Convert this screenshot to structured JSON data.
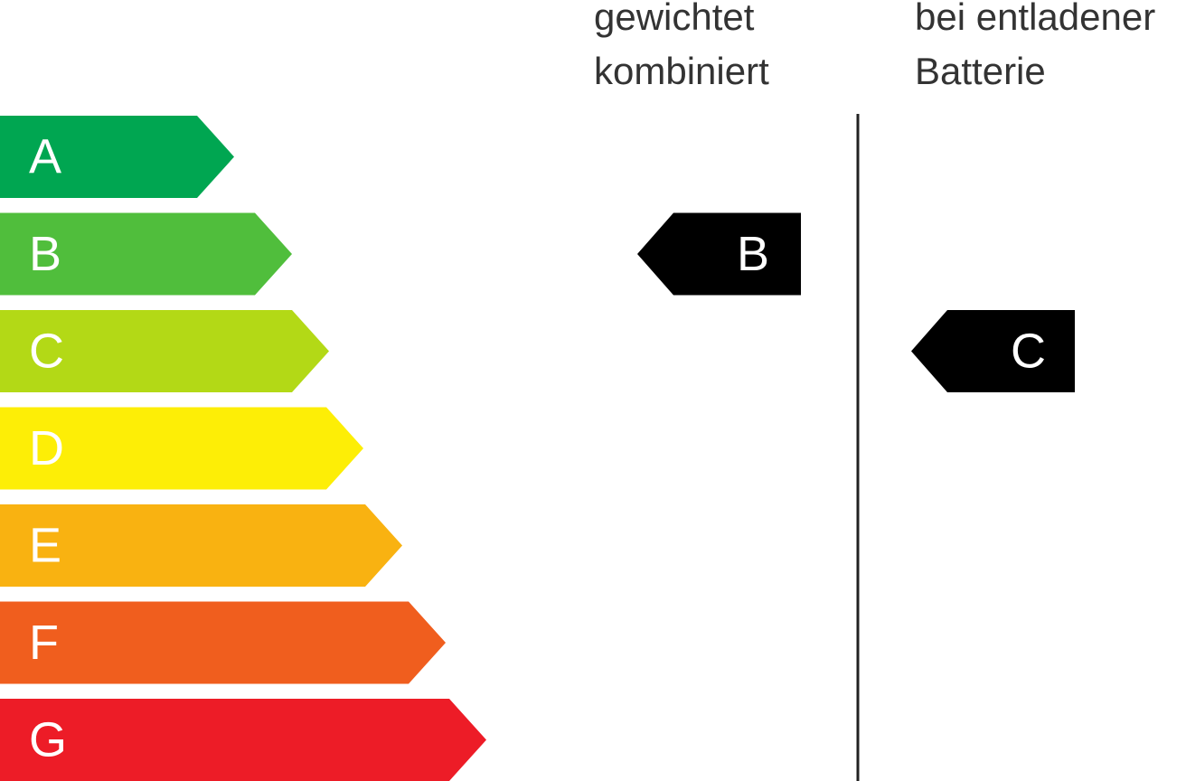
{
  "classes": [
    {
      "label": "A",
      "color": "#00a651"
    },
    {
      "label": "B",
      "color": "#50be3c"
    },
    {
      "label": "C",
      "color": "#b3d916"
    },
    {
      "label": "D",
      "color": "#fdee06"
    },
    {
      "label": "E",
      "color": "#f9b211"
    },
    {
      "label": "F",
      "color": "#f05e1e"
    },
    {
      "label": "G",
      "color": "#ed1c27"
    }
  ],
  "columns": [
    {
      "header_lines": [
        "gewichtet",
        "kombiniert"
      ],
      "rating": "B"
    },
    {
      "header_lines": [
        "bei entladener",
        "Batterie"
      ],
      "rating": "C"
    }
  ]
}
